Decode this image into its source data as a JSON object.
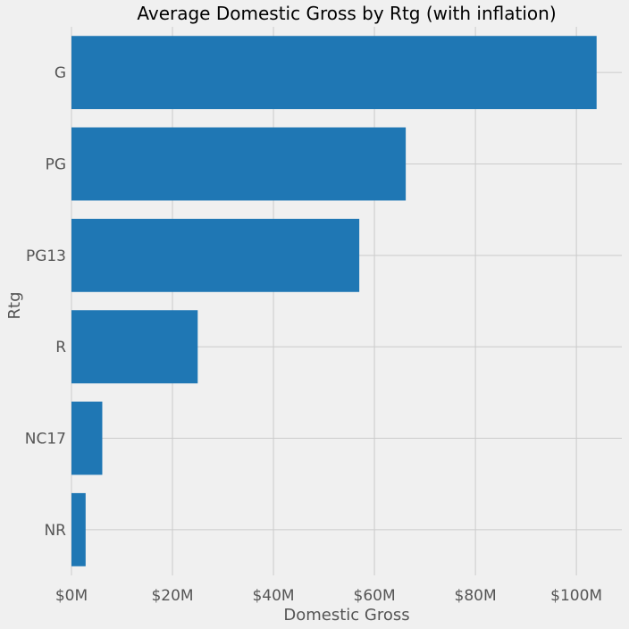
{
  "chart_data": {
    "type": "bar",
    "orientation": "horizontal",
    "title": "Average Domestic Gross by Rtg (with inflation)",
    "xlabel": "Domestic Gross",
    "ylabel": "Rtg",
    "categories": [
      "G",
      "PG",
      "PG13",
      "R",
      "NC17",
      "NR"
    ],
    "values": [
      104000000,
      66200000,
      57000000,
      25000000,
      6100000,
      2800000
    ],
    "xlim": [
      0,
      109000000
    ],
    "x_ticks": [
      0,
      20000000,
      40000000,
      60000000,
      80000000,
      100000000
    ],
    "x_tick_labels": [
      "$0M",
      "$20M",
      "$40M",
      "$60M",
      "$80M",
      "$100M"
    ],
    "grid": true,
    "bar_color": "#1f77b4",
    "background": "#f0f0f0"
  }
}
